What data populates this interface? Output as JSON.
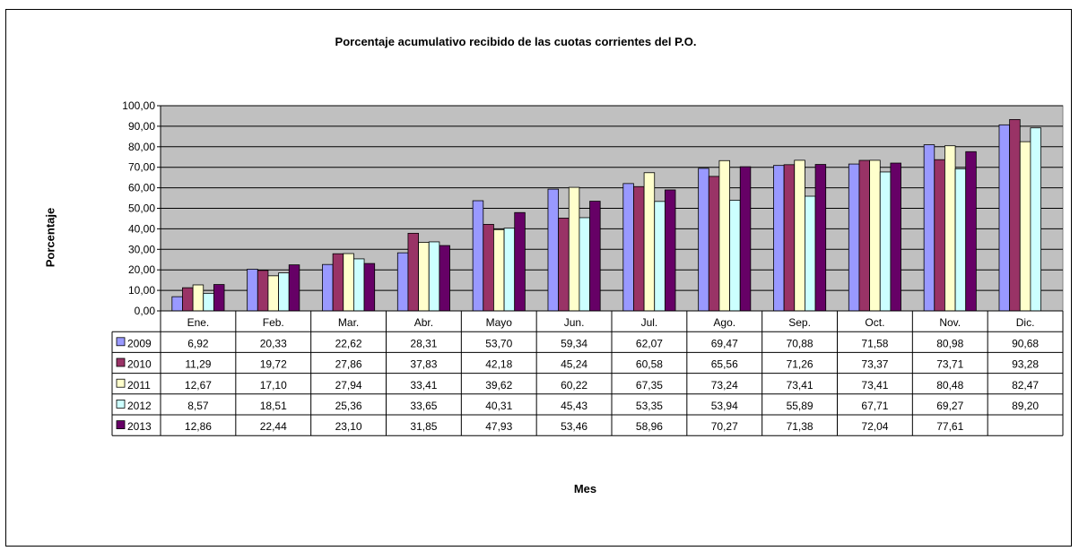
{
  "chart_data": {
    "type": "bar",
    "title": "Porcentaje acumulativo  recibido de las cuotas corrientes del P.O.",
    "xlabel": "Mes",
    "ylabel": "Porcentaje",
    "ylim": [
      0,
      100
    ],
    "yticks": [
      "0,00",
      "10,00",
      "20,00",
      "30,00",
      "40,00",
      "50,00",
      "60,00",
      "70,00",
      "80,00",
      "90,00",
      "100,00"
    ],
    "categories": [
      "Ene.",
      "Feb.",
      "Mar.",
      "Abr.",
      "Mayo",
      "Jun.",
      "Jul.",
      "Ago.",
      "Sep.",
      "Oct.",
      "Nov.",
      "Dic."
    ],
    "grid": true,
    "legend_placement": "data-table",
    "plot_background": "#C0C0C0",
    "series": [
      {
        "name": "2009",
        "color": "#9999FF",
        "values": [
          6.92,
          20.33,
          22.62,
          28.31,
          53.7,
          59.34,
          62.07,
          69.47,
          70.88,
          71.58,
          80.98,
          90.68
        ],
        "labels": [
          "6,92",
          "20,33",
          "22,62",
          "28,31",
          "53,70",
          "59,34",
          "62,07",
          "69,47",
          "70,88",
          "71,58",
          "80,98",
          "90,68"
        ]
      },
      {
        "name": "2010",
        "color": "#993366",
        "values": [
          11.29,
          19.72,
          27.86,
          37.83,
          42.18,
          45.24,
          60.58,
          65.56,
          71.26,
          73.37,
          73.71,
          93.28
        ],
        "labels": [
          "11,29",
          "19,72",
          "27,86",
          "37,83",
          "42,18",
          "45,24",
          "60,58",
          "65,56",
          "71,26",
          "73,37",
          "73,71",
          "93,28"
        ]
      },
      {
        "name": "2011",
        "color": "#FFFFCC",
        "values": [
          12.67,
          17.1,
          27.94,
          33.41,
          39.62,
          60.22,
          67.35,
          73.24,
          73.41,
          73.41,
          80.48,
          82.47
        ],
        "labels": [
          "12,67",
          "17,10",
          "27,94",
          "33,41",
          "39,62",
          "60,22",
          "67,35",
          "73,24",
          "73,41",
          "73,41",
          "80,48",
          "82,47"
        ]
      },
      {
        "name": "2012",
        "color": "#CCFFFF",
        "values": [
          8.57,
          18.51,
          25.36,
          33.65,
          40.31,
          45.43,
          53.35,
          53.94,
          55.89,
          67.71,
          69.27,
          89.2
        ],
        "labels": [
          "8,57",
          "18,51",
          "25,36",
          "33,65",
          "40,31",
          "45,43",
          "53,35",
          "53,94",
          "55,89",
          "67,71",
          "69,27",
          "89,20"
        ]
      },
      {
        "name": "2013",
        "color": "#660066",
        "values": [
          12.86,
          22.44,
          23.1,
          31.85,
          47.93,
          53.46,
          58.96,
          70.27,
          71.38,
          72.04,
          77.61,
          null
        ],
        "labels": [
          "12,86",
          "22,44",
          "23,10",
          "31,85",
          "47,93",
          "53,46",
          "58,96",
          "70,27",
          "71,38",
          "72,04",
          "77,61",
          ""
        ]
      }
    ]
  }
}
